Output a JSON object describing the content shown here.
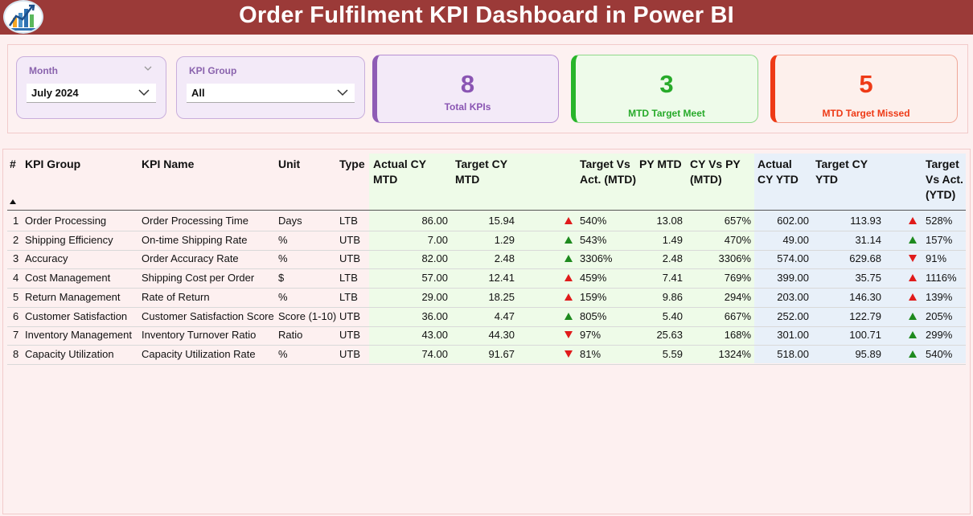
{
  "header": {
    "title": "Order Fulfilment KPI Dashboard in Power BI"
  },
  "logo": {
    "icon": "bar-chart-logo-icon"
  },
  "filters": {
    "month": {
      "label": "Month",
      "value": "July 2024"
    },
    "kpi_group": {
      "label": "KPI Group",
      "value": "All"
    }
  },
  "cards": {
    "total": {
      "value": "8",
      "caption": "Total KPIs",
      "color": "#8a55b3"
    },
    "meet": {
      "value": "3",
      "caption": "MTD Target Meet",
      "color": "#27aa2a"
    },
    "missed": {
      "value": "5",
      "caption": "MTD Target Missed",
      "color": "#ee3a16"
    }
  },
  "table": {
    "headers": {
      "num": "#",
      "kpi_group": "KPI Group",
      "kpi_name": "KPI Name",
      "unit": "Unit",
      "type": "Type",
      "actual_cy_mtd": "Actual CY MTD",
      "target_cy_mtd": "Target CY MTD",
      "target_vs_act_mtd": "Target Vs Act. (MTD)",
      "py_mtd": "PY MTD",
      "cy_vs_py_mtd": "CY Vs PY (MTD)",
      "actual_cy_ytd": "Actual CY YTD",
      "target_cy_ytd": "Target CY YTD",
      "target_vs_act_ytd": "Target Vs Act. (YTD)"
    },
    "rows": [
      {
        "num": "1",
        "group": "Order Processing",
        "name": "Order Processing Time",
        "unit": "Days",
        "type": "LTB",
        "actual_mtd": "86.00",
        "target_mtd": "15.94",
        "mtd_dir": "up",
        "mtd_color": "red",
        "tva_mtd": "540%",
        "py_mtd": "13.08",
        "cy_vs_py": "657%",
        "actual_ytd": "602.00",
        "target_ytd": "113.93",
        "ytd_dir": "up",
        "ytd_color": "red",
        "tva_ytd": "528%"
      },
      {
        "num": "2",
        "group": "Shipping Efficiency",
        "name": "On-time Shipping Rate",
        "unit": "%",
        "type": "UTB",
        "actual_mtd": "7.00",
        "target_mtd": "1.29",
        "mtd_dir": "up",
        "mtd_color": "green",
        "tva_mtd": "543%",
        "py_mtd": "1.49",
        "cy_vs_py": "470%",
        "actual_ytd": "49.00",
        "target_ytd": "31.14",
        "ytd_dir": "up",
        "ytd_color": "green",
        "tva_ytd": "157%"
      },
      {
        "num": "3",
        "group": "Accuracy",
        "name": "Order Accuracy Rate",
        "unit": "%",
        "type": "UTB",
        "actual_mtd": "82.00",
        "target_mtd": "2.48",
        "mtd_dir": "up",
        "mtd_color": "green",
        "tva_mtd": "3306%",
        "py_mtd": "2.48",
        "cy_vs_py": "3306%",
        "actual_ytd": "574.00",
        "target_ytd": "629.68",
        "ytd_dir": "down",
        "ytd_color": "red",
        "tva_ytd": "91%"
      },
      {
        "num": "4",
        "group": "Cost Management",
        "name": "Shipping Cost per Order",
        "unit": "$",
        "type": "LTB",
        "actual_mtd": "57.00",
        "target_mtd": "12.41",
        "mtd_dir": "up",
        "mtd_color": "red",
        "tva_mtd": "459%",
        "py_mtd": "7.41",
        "cy_vs_py": "769%",
        "actual_ytd": "399.00",
        "target_ytd": "35.75",
        "ytd_dir": "up",
        "ytd_color": "red",
        "tva_ytd": "1116%"
      },
      {
        "num": "5",
        "group": "Return Management",
        "name": "Rate of Return",
        "unit": "%",
        "type": "LTB",
        "actual_mtd": "29.00",
        "target_mtd": "18.25",
        "mtd_dir": "up",
        "mtd_color": "red",
        "tva_mtd": "159%",
        "py_mtd": "9.86",
        "cy_vs_py": "294%",
        "actual_ytd": "203.00",
        "target_ytd": "146.30",
        "ytd_dir": "up",
        "ytd_color": "red",
        "tva_ytd": "139%"
      },
      {
        "num": "6",
        "group": "Customer Satisfaction",
        "name": "Customer Satisfaction Score",
        "unit": "Score (1-10)",
        "type": "UTB",
        "actual_mtd": "36.00",
        "target_mtd": "4.47",
        "mtd_dir": "up",
        "mtd_color": "green",
        "tva_mtd": "805%",
        "py_mtd": "5.40",
        "cy_vs_py": "667%",
        "actual_ytd": "252.00",
        "target_ytd": "122.79",
        "ytd_dir": "up",
        "ytd_color": "green",
        "tva_ytd": "205%"
      },
      {
        "num": "7",
        "group": "Inventory Management",
        "name": "Inventory Turnover Ratio",
        "unit": "Ratio",
        "type": "UTB",
        "actual_mtd": "43.00",
        "target_mtd": "44.30",
        "mtd_dir": "down",
        "mtd_color": "red",
        "tva_mtd": "97%",
        "py_mtd": "25.63",
        "cy_vs_py": "168%",
        "actual_ytd": "301.00",
        "target_ytd": "100.71",
        "ytd_dir": "up",
        "ytd_color": "green",
        "tva_ytd": "299%"
      },
      {
        "num": "8",
        "group": "Capacity Utilization",
        "name": "Capacity Utilization Rate",
        "unit": "%",
        "type": "UTB",
        "actual_mtd": "74.00",
        "target_mtd": "91.67",
        "mtd_dir": "down",
        "mtd_color": "red",
        "tva_mtd": "81%",
        "py_mtd": "5.59",
        "cy_vs_py": "1324%",
        "actual_ytd": "518.00",
        "target_ytd": "95.89",
        "ytd_dir": "up",
        "ytd_color": "green",
        "tva_ytd": "540%"
      }
    ]
  },
  "colors": {
    "banner": "#9b3a38",
    "green": "#1e8a1e",
    "red": "#e01b1b"
  }
}
